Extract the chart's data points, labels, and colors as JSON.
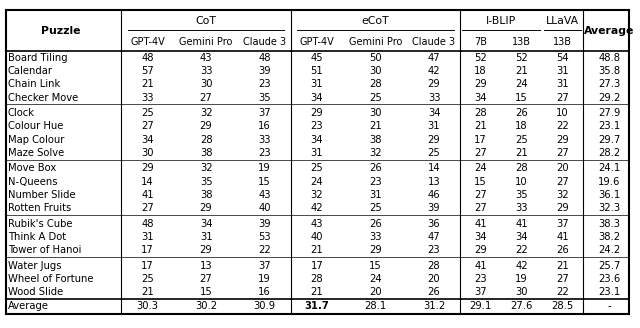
{
  "header2": [
    "Puzzle",
    "GPT-4V",
    "Gemini Pro",
    "Claude 3",
    "GPT-4V",
    "Gemini Pro",
    "Claude 3",
    "7B",
    "13B",
    "13B",
    "Average"
  ],
  "groups": [
    {
      "rows": [
        [
          "Board Tiling",
          48,
          43,
          48,
          45,
          50,
          47,
          52,
          52,
          54,
          48.8
        ],
        [
          "Calendar",
          57,
          33,
          39,
          51,
          30,
          42,
          18,
          21,
          31,
          35.8
        ],
        [
          "Chain Link",
          21,
          30,
          23,
          31,
          28,
          29,
          29,
          24,
          31,
          27.3
        ],
        [
          "Checker Move",
          33,
          27,
          35,
          34,
          25,
          33,
          34,
          15,
          27,
          29.2
        ]
      ]
    },
    {
      "rows": [
        [
          "Clock",
          25,
          32,
          37,
          29,
          30,
          34,
          28,
          26,
          10,
          27.9
        ],
        [
          "Colour Hue",
          27,
          29,
          16,
          23,
          21,
          31,
          21,
          18,
          22,
          23.1
        ],
        [
          "Map Colour",
          34,
          28,
          33,
          34,
          38,
          29,
          17,
          25,
          29,
          29.7
        ],
        [
          "Maze Solve",
          30,
          38,
          23,
          31,
          32,
          25,
          27,
          21,
          27,
          28.2
        ]
      ]
    },
    {
      "rows": [
        [
          "Move Box",
          29,
          32,
          19,
          25,
          26,
          14,
          24,
          28,
          20,
          24.1
        ],
        [
          "N-Queens",
          14,
          35,
          15,
          24,
          23,
          13,
          15,
          10,
          27,
          19.6
        ],
        [
          "Number Slide",
          41,
          38,
          43,
          32,
          31,
          46,
          27,
          35,
          32,
          36.1
        ],
        [
          "Rotten Fruits",
          27,
          29,
          40,
          42,
          25,
          39,
          27,
          33,
          29,
          32.3
        ]
      ]
    },
    {
      "rows": [
        [
          "Rubik's Cube",
          48,
          34,
          39,
          43,
          26,
          36,
          41,
          41,
          37,
          38.3
        ],
        [
          "Think A Dot",
          31,
          31,
          53,
          40,
          33,
          47,
          34,
          34,
          41,
          38.2
        ],
        [
          "Tower of Hanoi",
          17,
          29,
          22,
          21,
          29,
          23,
          29,
          22,
          26,
          24.2
        ]
      ]
    },
    {
      "rows": [
        [
          "Water Jugs",
          17,
          13,
          37,
          17,
          15,
          28,
          41,
          42,
          21,
          25.7
        ],
        [
          "Wheel of Fortune",
          25,
          27,
          19,
          28,
          24,
          20,
          23,
          19,
          27,
          23.6
        ],
        [
          "Wood Slide",
          21,
          15,
          16,
          21,
          20,
          26,
          37,
          30,
          22,
          23.1
        ]
      ]
    }
  ],
  "avg_row": [
    "Average",
    30.3,
    30.2,
    30.9,
    "31.7",
    28.1,
    31.2,
    29.1,
    27.6,
    28.5,
    "-"
  ],
  "bold_avg_col": 4,
  "col_widths": [
    1.72,
    0.74,
    0.92,
    0.74,
    0.74,
    0.92,
    0.74,
    0.58,
    0.58,
    0.58,
    0.74
  ],
  "figsize": [
    6.4,
    3.28
  ],
  "dpi": 100,
  "font_size": 7.2,
  "header_font_size": 7.8,
  "bg_color": "#ffffff"
}
